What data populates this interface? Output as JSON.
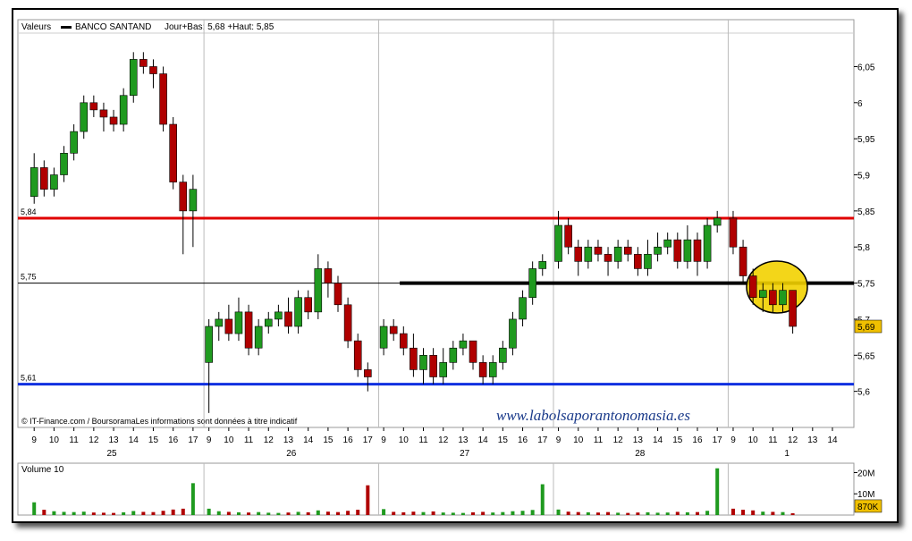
{
  "chart_data": {
    "type": "candlestick",
    "legend_label": "Valeurs",
    "series_name": "BANCO SANTAND",
    "day_range": "Jour+Bas: 5,68 +Haut: 5,85",
    "source": "© IT-Finance.com / BoursoramaLes informations sont données à titre indicatif",
    "watermark": "www.labolsaporantonomasia.es",
    "up_color": "#1f9a1f",
    "down_color": "#b00000",
    "xlim": [
      0,
      42.1
    ],
    "ylim": [
      5.55,
      6.115
    ],
    "yticks": [
      {
        "value": 5.6,
        "label": "5,6"
      },
      {
        "value": 5.65,
        "label": "5,65"
      },
      {
        "value": 5.7,
        "label": "5,7"
      },
      {
        "value": 5.75,
        "label": "5,75"
      },
      {
        "value": 5.8,
        "label": "5,8"
      },
      {
        "value": 5.85,
        "label": "5,85"
      },
      {
        "value": 5.9,
        "label": "5,9"
      },
      {
        "value": 5.95,
        "label": "5,95"
      },
      {
        "value": 6,
        "label": "6"
      },
      {
        "value": 6.05,
        "label": "6,05"
      }
    ],
    "xticks": [
      {
        "value": 0.82,
        "label": "9"
      },
      {
        "value": 1.82,
        "label": "10"
      },
      {
        "value": 2.82,
        "label": "11"
      },
      {
        "value": 3.82,
        "label": "12"
      },
      {
        "value": 4.82,
        "label": "13"
      },
      {
        "value": 5.82,
        "label": "14"
      },
      {
        "value": 6.82,
        "label": "15"
      },
      {
        "value": 7.82,
        "label": "16"
      },
      {
        "value": 8.82,
        "label": "17"
      },
      {
        "value": 9.62,
        "label": "9"
      },
      {
        "value": 10.62,
        "label": "10"
      },
      {
        "value": 11.62,
        "label": "11"
      },
      {
        "value": 12.62,
        "label": "12"
      },
      {
        "value": 13.62,
        "label": "13"
      },
      {
        "value": 14.62,
        "label": "14"
      },
      {
        "value": 15.62,
        "label": "15"
      },
      {
        "value": 16.62,
        "label": "16"
      },
      {
        "value": 17.62,
        "label": "17"
      },
      {
        "value": 18.42,
        "label": "9"
      },
      {
        "value": 19.42,
        "label": "10"
      },
      {
        "value": 20.42,
        "label": "11"
      },
      {
        "value": 21.42,
        "label": "12"
      },
      {
        "value": 22.42,
        "label": "13"
      },
      {
        "value": 23.42,
        "label": "14"
      },
      {
        "value": 24.42,
        "label": "15"
      },
      {
        "value": 25.42,
        "label": "16"
      },
      {
        "value": 26.42,
        "label": "17"
      },
      {
        "value": 27.22,
        "label": "9"
      },
      {
        "value": 28.22,
        "label": "10"
      },
      {
        "value": 29.22,
        "label": "11"
      },
      {
        "value": 30.22,
        "label": "12"
      },
      {
        "value": 31.22,
        "label": "13"
      },
      {
        "value": 32.22,
        "label": "14"
      },
      {
        "value": 33.22,
        "label": "15"
      },
      {
        "value": 34.22,
        "label": "16"
      },
      {
        "value": 35.22,
        "label": "17"
      },
      {
        "value": 36.02,
        "label": "9"
      },
      {
        "value": 37.02,
        "label": "10"
      },
      {
        "value": 38.02,
        "label": "11"
      },
      {
        "value": 39.02,
        "label": "12"
      },
      {
        "value": 40.02,
        "label": "13"
      },
      {
        "value": 41.02,
        "label": "14"
      }
    ],
    "day_labels": [
      {
        "value": 4.73,
        "label": "25"
      },
      {
        "value": 13.77,
        "label": "26"
      },
      {
        "value": 22.5,
        "label": "27"
      },
      {
        "value": 31.33,
        "label": "28"
      },
      {
        "value": 38.73,
        "label": "1"
      }
    ],
    "day_separators": [
      9.37,
      18.17,
      26.97,
      35.77
    ],
    "levels": [
      {
        "value": 5.84,
        "label": "5,84",
        "color": "#e00000",
        "width": 3
      },
      {
        "value": 5.75,
        "label": "5,75",
        "color": "#000000",
        "width": 1
      },
      {
        "value": 5.61,
        "label": "5,61",
        "color": "#1030e0",
        "width": 3
      }
    ],
    "trendline": {
      "x": [
        19.23,
        42.1
      ],
      "y": [
        5.75,
        5.75
      ],
      "color": "#000000"
    },
    "last_price": {
      "value": 5.69,
      "label": "5,69"
    },
    "x": [
      0.82,
      1.32,
      1.82,
      2.32,
      2.82,
      3.32,
      3.82,
      4.32,
      4.82,
      5.32,
      5.82,
      6.32,
      6.82,
      7.32,
      7.82,
      8.32,
      8.82,
      9.62,
      10.12,
      10.62,
      11.12,
      11.62,
      12.12,
      12.62,
      13.12,
      13.62,
      14.12,
      14.62,
      15.12,
      15.62,
      16.12,
      16.62,
      17.12,
      17.62,
      18.42,
      18.92,
      19.42,
      19.92,
      20.42,
      20.92,
      21.42,
      21.92,
      22.42,
      22.92,
      23.42,
      23.92,
      24.42,
      24.92,
      25.42,
      25.92,
      26.42,
      27.22,
      27.72,
      28.22,
      28.72,
      29.22,
      29.72,
      30.22,
      30.72,
      31.22,
      31.72,
      32.22,
      32.72,
      33.22,
      33.72,
      34.22,
      34.72,
      35.22,
      36.02,
      36.52,
      37.02,
      37.52,
      38.02,
      38.52,
      39.02
    ],
    "open": [
      5.87,
      5.91,
      5.88,
      5.9,
      5.93,
      5.96,
      6,
      5.99,
      5.98,
      5.97,
      6.01,
      6.06,
      6.05,
      6.04,
      5.97,
      5.89,
      5.85,
      5.64,
      5.69,
      5.7,
      5.68,
      5.71,
      5.66,
      5.69,
      5.7,
      5.71,
      5.69,
      5.73,
      5.71,
      5.77,
      5.75,
      5.72,
      5.67,
      5.63,
      5.66,
      5.69,
      5.68,
      5.66,
      5.63,
      5.65,
      5.62,
      5.64,
      5.66,
      5.67,
      5.64,
      5.62,
      5.64,
      5.66,
      5.7,
      5.73,
      5.77,
      5.78,
      5.83,
      5.8,
      5.78,
      5.8,
      5.79,
      5.78,
      5.8,
      5.79,
      5.77,
      5.79,
      5.8,
      5.81,
      5.78,
      5.81,
      5.78,
      5.83,
      5.84,
      5.8,
      5.76,
      5.73,
      5.74,
      5.72,
      5.74
    ],
    "high": [
      5.93,
      5.92,
      5.91,
      5.94,
      5.97,
      6.01,
      6.01,
      6,
      5.99,
      6.02,
      6.07,
      6.07,
      6.06,
      6.05,
      5.98,
      5.9,
      5.9,
      5.7,
      5.71,
      5.72,
      5.73,
      5.72,
      5.7,
      5.71,
      5.72,
      5.73,
      5.74,
      5.74,
      5.79,
      5.78,
      5.76,
      5.73,
      5.68,
      5.64,
      5.7,
      5.7,
      5.69,
      5.68,
      5.66,
      5.66,
      5.66,
      5.67,
      5.68,
      5.67,
      5.65,
      5.65,
      5.67,
      5.71,
      5.74,
      5.78,
      5.79,
      5.85,
      5.84,
      5.81,
      5.81,
      5.81,
      5.8,
      5.81,
      5.81,
      5.8,
      5.81,
      5.82,
      5.82,
      5.82,
      5.83,
      5.82,
      5.84,
      5.85,
      5.85,
      5.81,
      5.77,
      5.75,
      5.75,
      5.75,
      5.74
    ],
    "low": [
      5.86,
      5.87,
      5.87,
      5.89,
      5.92,
      5.95,
      5.98,
      5.96,
      5.96,
      5.96,
      6,
      6.04,
      6.02,
      5.96,
      5.88,
      5.79,
      5.8,
      5.57,
      5.67,
      5.67,
      5.67,
      5.65,
      5.65,
      5.68,
      5.69,
      5.68,
      5.68,
      5.7,
      5.7,
      5.73,
      5.71,
      5.66,
      5.62,
      5.6,
      5.65,
      5.67,
      5.65,
      5.62,
      5.61,
      5.61,
      5.61,
      5.63,
      5.65,
      5.63,
      5.61,
      5.61,
      5.63,
      5.65,
      5.69,
      5.72,
      5.76,
      5.77,
      5.79,
      5.76,
      5.77,
      5.78,
      5.76,
      5.77,
      5.78,
      5.76,
      5.76,
      5.78,
      5.79,
      5.77,
      5.77,
      5.76,
      5.77,
      5.82,
      5.79,
      5.75,
      5.72,
      5.71,
      5.71,
      5.71,
      5.68
    ],
    "close": [
      5.91,
      5.88,
      5.9,
      5.93,
      5.96,
      6,
      5.99,
      5.98,
      5.97,
      6.01,
      6.06,
      6.05,
      6.04,
      5.97,
      5.89,
      5.85,
      5.88,
      5.69,
      5.7,
      5.68,
      5.71,
      5.66,
      5.69,
      5.7,
      5.71,
      5.69,
      5.73,
      5.71,
      5.77,
      5.75,
      5.72,
      5.67,
      5.63,
      5.62,
      5.69,
      5.68,
      5.66,
      5.63,
      5.65,
      5.62,
      5.64,
      5.66,
      5.67,
      5.64,
      5.62,
      5.64,
      5.66,
      5.7,
      5.73,
      5.77,
      5.78,
      5.83,
      5.8,
      5.78,
      5.8,
      5.79,
      5.78,
      5.8,
      5.79,
      5.77,
      5.79,
      5.8,
      5.81,
      5.78,
      5.81,
      5.78,
      5.83,
      5.84,
      5.8,
      5.76,
      5.73,
      5.74,
      5.72,
      5.74,
      5.69
    ],
    "volume": {
      "label": "Volume 10",
      "ylim": [
        0,
        24400000
      ],
      "yticks": [
        {
          "value": 10000000,
          "label": "10M"
        },
        {
          "value": 20000000,
          "label": "20M"
        }
      ],
      "last_value": {
        "value": 870000,
        "label": "870K"
      },
      "values": [
        6000000,
        2500000,
        1800000,
        1500000,
        1400000,
        1600000,
        1200000,
        1100000,
        1000000,
        1300000,
        1900000,
        1500000,
        1400000,
        2000000,
        2600000,
        3000000,
        15000000,
        3000000,
        1800000,
        1500000,
        1300000,
        1200000,
        1400000,
        1100000,
        1000000,
        1200000,
        1500000,
        1300000,
        2200000,
        1600000,
        1400000,
        2000000,
        2500000,
        14000000,
        2800000,
        1500000,
        1300000,
        1600000,
        1400000,
        1700000,
        1200000,
        1100000,
        1000000,
        1300000,
        1500000,
        1200000,
        1400000,
        1800000,
        2000000,
        2400000,
        14500000,
        2600000,
        1600000,
        1400000,
        1300000,
        1200000,
        1400000,
        1100000,
        1000000,
        1200000,
        1300000,
        1100000,
        1200000,
        1500000,
        1300000,
        1400000,
        2000000,
        22000000,
        3000000,
        2500000,
        2200000,
        1600000,
        1500000,
        1400000,
        870000
      ]
    }
  }
}
